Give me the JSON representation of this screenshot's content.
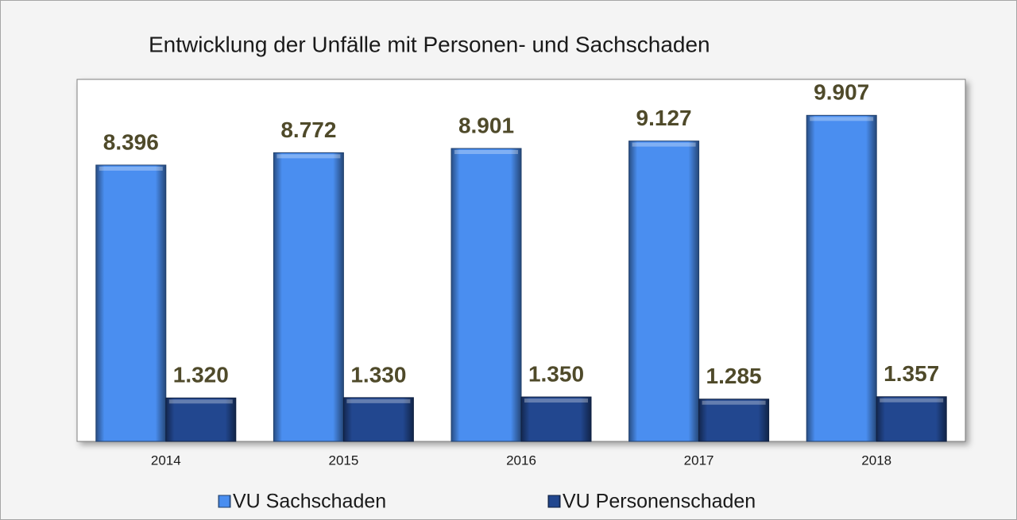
{
  "chart_data": {
    "type": "bar",
    "title": "Entwicklung der Unfälle mit Personen- und Sachschaden",
    "categories": [
      "2014",
      "2015",
      "2016",
      "2017",
      "2018"
    ],
    "series": [
      {
        "name": "VU Sachschaden",
        "color": "#4a8ef0",
        "values": [
          8396,
          8772,
          8901,
          9127,
          9907
        ],
        "value_labels": [
          "8.396",
          "8.772",
          "8.901",
          "9.127",
          "9.907"
        ]
      },
      {
        "name": "VU Personenschaden",
        "color": "#22478f",
        "values": [
          1320,
          1330,
          1350,
          1285,
          1357
        ],
        "value_labels": [
          "1.320",
          "1.330",
          "1.350",
          "1.285",
          "1.357"
        ]
      }
    ],
    "ylim": [
      0,
      11000
    ],
    "legend": "bottom"
  }
}
